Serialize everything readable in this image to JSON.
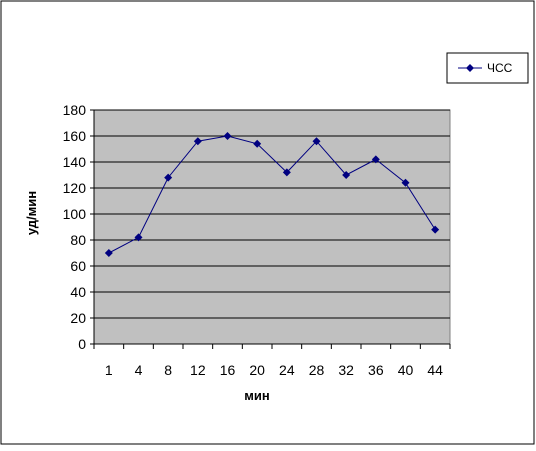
{
  "chart_data": {
    "type": "line",
    "title": "",
    "xlabel": "мин",
    "ylabel": "уд/мин",
    "categories": [
      "1",
      "4",
      "8",
      "12",
      "16",
      "20",
      "24",
      "28",
      "32",
      "36",
      "40",
      "44"
    ],
    "series": [
      {
        "name": "ЧСС",
        "values": [
          70,
          82,
          128,
          156,
          160,
          154,
          132,
          156,
          130,
          142,
          124,
          88
        ]
      }
    ],
    "ylim": [
      0,
      180
    ],
    "yticks": [
      0,
      20,
      40,
      60,
      80,
      100,
      120,
      140,
      160,
      180
    ],
    "grid": true,
    "legend_position": "right",
    "colors": {
      "plot_background": "#c0c0c0",
      "series_line": "#000080",
      "gridline": "#000000",
      "frame": "#000000"
    }
  }
}
